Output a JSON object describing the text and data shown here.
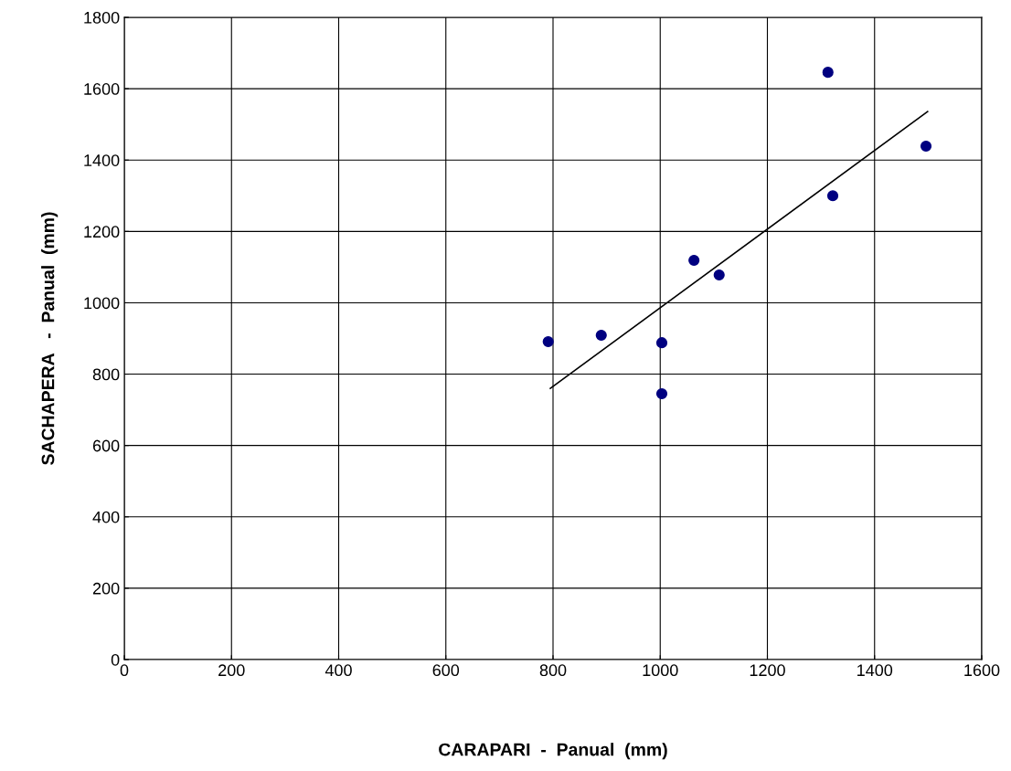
{
  "chart_data": {
    "type": "scatter",
    "xlabel": "CARAPARI  -  Panual  (mm)",
    "ylabel": "SACHAPERA   -  Panual  (mm)",
    "xlim": [
      0,
      1600
    ],
    "xticks": [
      0,
      200,
      400,
      600,
      800,
      1000,
      1200,
      1400,
      1600
    ],
    "ylim": [
      0,
      1800
    ],
    "yticks": [
      0,
      200,
      400,
      600,
      800,
      1000,
      1200,
      1400,
      1600,
      1800
    ],
    "grid": true,
    "marker": "circle",
    "series": [
      {
        "color": "#000080",
        "x": [
          791,
          890,
          1003,
          1003,
          1063,
          1110,
          1313,
          1322,
          1496
        ],
        "values": [
          891,
          909,
          888,
          745,
          1119,
          1078,
          1646,
          1300,
          1439
        ]
      },
      {
        "type": "line",
        "color": "#000000",
        "line_style": "solid",
        "marker": "none",
        "x": [
          795,
          1499
        ],
        "values": [
          760,
          1536
        ]
      }
    ]
  }
}
